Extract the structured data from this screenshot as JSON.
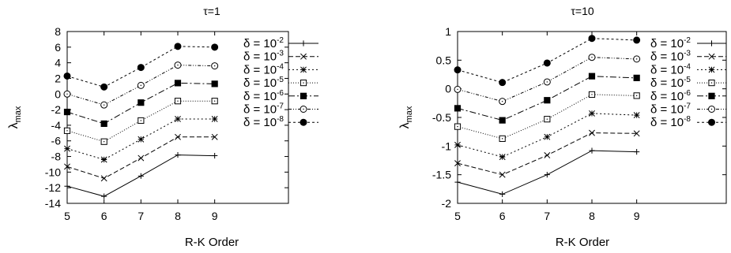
{
  "chart_data": [
    {
      "type": "line",
      "title": "τ=1",
      "xlabel": "R-K Order",
      "ylabel": "λ",
      "ylabel_sub": "max",
      "xlim": [
        5,
        11
      ],
      "ylim": [
        -14,
        8
      ],
      "xticks": [
        5,
        6,
        7,
        8,
        9
      ],
      "yticks": [
        -14,
        -12,
        -10,
        -8,
        -6,
        -4,
        -2,
        0,
        2,
        4,
        6,
        8
      ],
      "grid": false,
      "legend_position": "right",
      "x": [
        5,
        6,
        7,
        8,
        9
      ],
      "series": [
        {
          "name": "δ = 10",
          "exp": "-2",
          "marker": "plus",
          "dash": "",
          "values": [
            -11.8,
            -13.1,
            -10.5,
            -7.8,
            -7.9
          ]
        },
        {
          "name": "δ = 10",
          "exp": "-3",
          "marker": "cross",
          "dash": "6,3",
          "values": [
            -9.3,
            -10.8,
            -8.2,
            -5.5,
            -5.5
          ]
        },
        {
          "name": "δ = 10",
          "exp": "-4",
          "marker": "star",
          "dash": "2,3",
          "values": [
            -7.0,
            -8.4,
            -5.8,
            -3.2,
            -3.2
          ]
        },
        {
          "name": "δ = 10",
          "exp": "-5",
          "marker": "open-square",
          "dash": "1,2",
          "values": [
            -4.7,
            -6.1,
            -3.4,
            -0.9,
            -0.9
          ]
        },
        {
          "name": "δ = 10",
          "exp": "-6",
          "marker": "filled-square",
          "dash": "8,3,2,3",
          "values": [
            -2.3,
            -3.8,
            -1.1,
            1.4,
            1.3
          ]
        },
        {
          "name": "δ = 10",
          "exp": "-7",
          "marker": "open-circle",
          "dash": "4,2,1,2,1,2",
          "values": [
            0.0,
            -1.4,
            1.1,
            3.7,
            3.6
          ]
        },
        {
          "name": "δ = 10",
          "exp": "-8",
          "marker": "filled-circle",
          "dash": "3,3",
          "values": [
            2.3,
            0.9,
            3.4,
            6.1,
            6.0
          ]
        }
      ]
    },
    {
      "type": "line",
      "title": "τ=10",
      "xlabel": "R-K Order",
      "ylabel": "λ",
      "ylabel_sub": "max",
      "xlim": [
        5,
        11
      ],
      "ylim": [
        -2,
        1
      ],
      "xticks": [
        5,
        6,
        7,
        8,
        9
      ],
      "yticks": [
        -2,
        -1.5,
        -1,
        -0.5,
        0,
        0.5,
        1
      ],
      "grid": false,
      "legend_position": "right",
      "x": [
        5,
        6,
        7,
        8,
        9
      ],
      "series": [
        {
          "name": "δ = 10",
          "exp": "-2",
          "marker": "plus",
          "dash": "",
          "values": [
            -1.63,
            -1.84,
            -1.5,
            -1.08,
            -1.1
          ]
        },
        {
          "name": "δ = 10",
          "exp": "-3",
          "marker": "cross",
          "dash": "6,3",
          "values": [
            -1.3,
            -1.5,
            -1.16,
            -0.77,
            -0.78
          ]
        },
        {
          "name": "δ = 10",
          "exp": "-4",
          "marker": "star",
          "dash": "2,3",
          "values": [
            -0.98,
            -1.19,
            -0.84,
            -0.43,
            -0.46
          ]
        },
        {
          "name": "δ = 10",
          "exp": "-5",
          "marker": "open-square",
          "dash": "1,2",
          "values": [
            -0.66,
            -0.87,
            -0.53,
            -0.1,
            -0.12
          ]
        },
        {
          "name": "δ = 10",
          "exp": "-6",
          "marker": "filled-square",
          "dash": "8,3,2,3",
          "values": [
            -0.34,
            -0.55,
            -0.2,
            0.22,
            0.19
          ]
        },
        {
          "name": "δ = 10",
          "exp": "-7",
          "marker": "open-circle",
          "dash": "4,2,1,2,1,2",
          "values": [
            -0.01,
            -0.22,
            0.12,
            0.55,
            0.52
          ]
        },
        {
          "name": "δ = 10",
          "exp": "-8",
          "marker": "filled-circle",
          "dash": "3,3",
          "values": [
            0.33,
            0.11,
            0.45,
            0.88,
            0.85
          ]
        }
      ]
    }
  ]
}
